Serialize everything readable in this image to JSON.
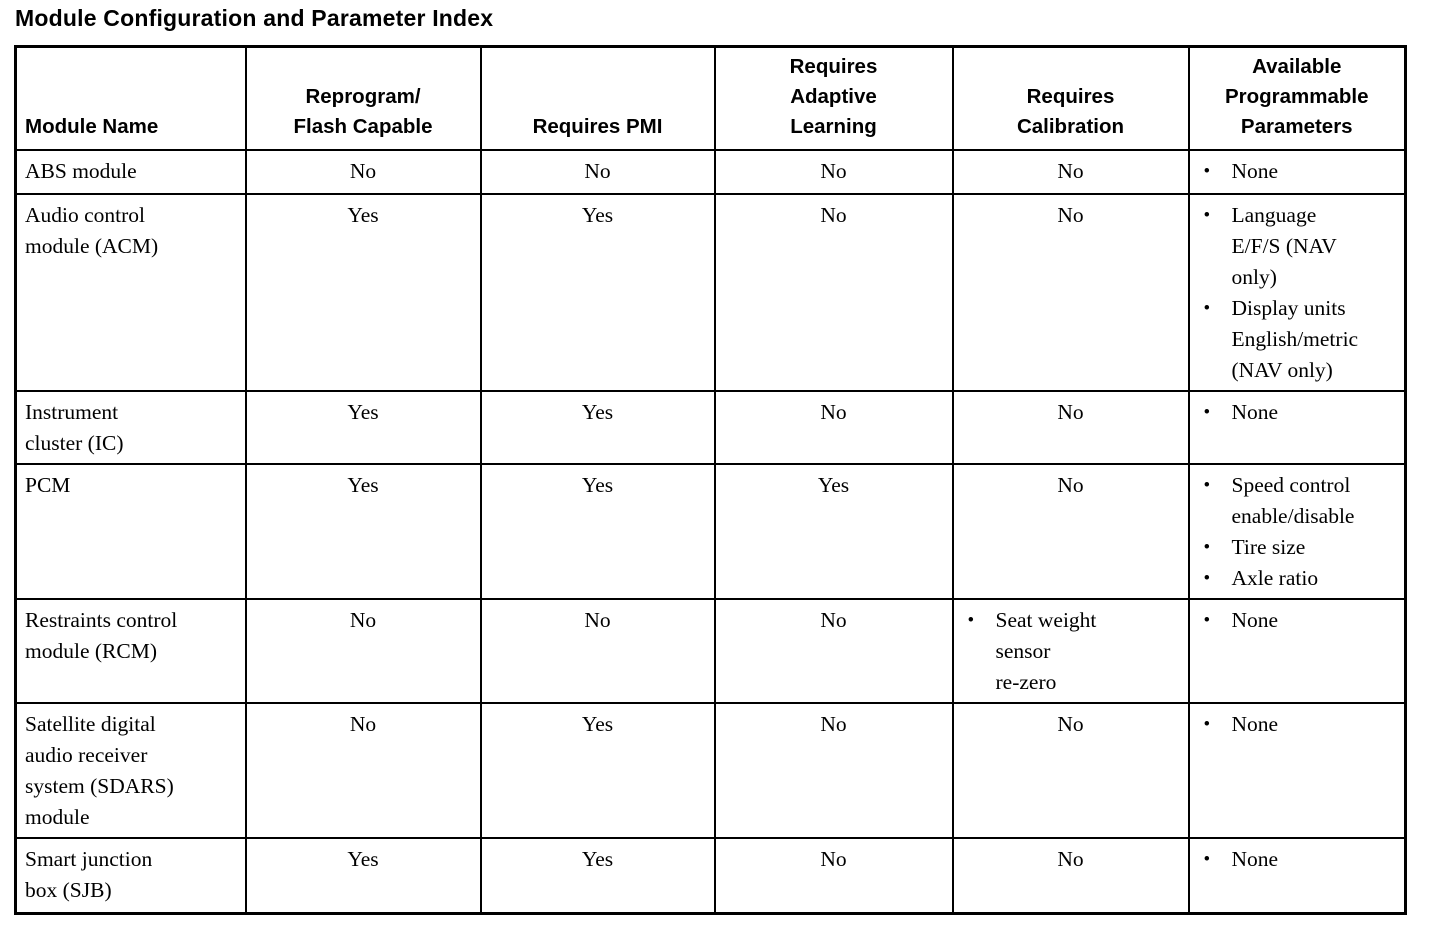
{
  "title": "Module Configuration and Parameter Index",
  "colors": {
    "text": "#000000",
    "background": "#ffffff",
    "border": "#000000"
  },
  "table": {
    "columns": [
      "Module Name",
      "Reprogram/\nFlash Capable",
      "Requires PMI",
      "Requires\nAdaptive\nLearning",
      "Requires\nCalibration",
      "Available\nProgrammable\nParameters"
    ],
    "bullet_glyph": "•",
    "rows": [
      {
        "module": "ABS module",
        "reprogram_flash_capable": "No",
        "requires_pmi": "No",
        "requires_adaptive_learning": "No",
        "requires_calibration": "No",
        "available_programmable_parameters": [
          "None"
        ]
      },
      {
        "module": "Audio control\nmodule (ACM)",
        "reprogram_flash_capable": "Yes",
        "requires_pmi": "Yes",
        "requires_adaptive_learning": "No",
        "requires_calibration": "No",
        "available_programmable_parameters": [
          "Language\nE/F/S (NAV\nonly)",
          "Display units\nEnglish/metric\n(NAV only)"
        ]
      },
      {
        "module": "Instrument\ncluster (IC)",
        "reprogram_flash_capable": "Yes",
        "requires_pmi": "Yes",
        "requires_adaptive_learning": "No",
        "requires_calibration": "No",
        "available_programmable_parameters": [
          "None"
        ]
      },
      {
        "module": "PCM",
        "reprogram_flash_capable": "Yes",
        "requires_pmi": "Yes",
        "requires_adaptive_learning": "Yes",
        "requires_calibration": "No",
        "available_programmable_parameters": [
          "Speed control\nenable/disable",
          "Tire size",
          "Axle ratio"
        ]
      },
      {
        "module": "Restraints control\nmodule (RCM)",
        "reprogram_flash_capable": "No",
        "requires_pmi": "No",
        "requires_adaptive_learning": "No",
        "requires_calibration": [
          "Seat weight\nsensor\nre-zero"
        ],
        "available_programmable_parameters": [
          "None"
        ]
      },
      {
        "module": "Satellite digital\naudio receiver\nsystem (SDARS)\nmodule",
        "reprogram_flash_capable": "No",
        "requires_pmi": "Yes",
        "requires_adaptive_learning": "No",
        "requires_calibration": "No",
        "available_programmable_parameters": [
          "None"
        ]
      },
      {
        "module": "Smart junction\nbox (SJB)",
        "reprogram_flash_capable": "Yes",
        "requires_pmi": "Yes",
        "requires_adaptive_learning": "No",
        "requires_calibration": "No",
        "available_programmable_parameters": [
          "None"
        ]
      }
    ]
  }
}
